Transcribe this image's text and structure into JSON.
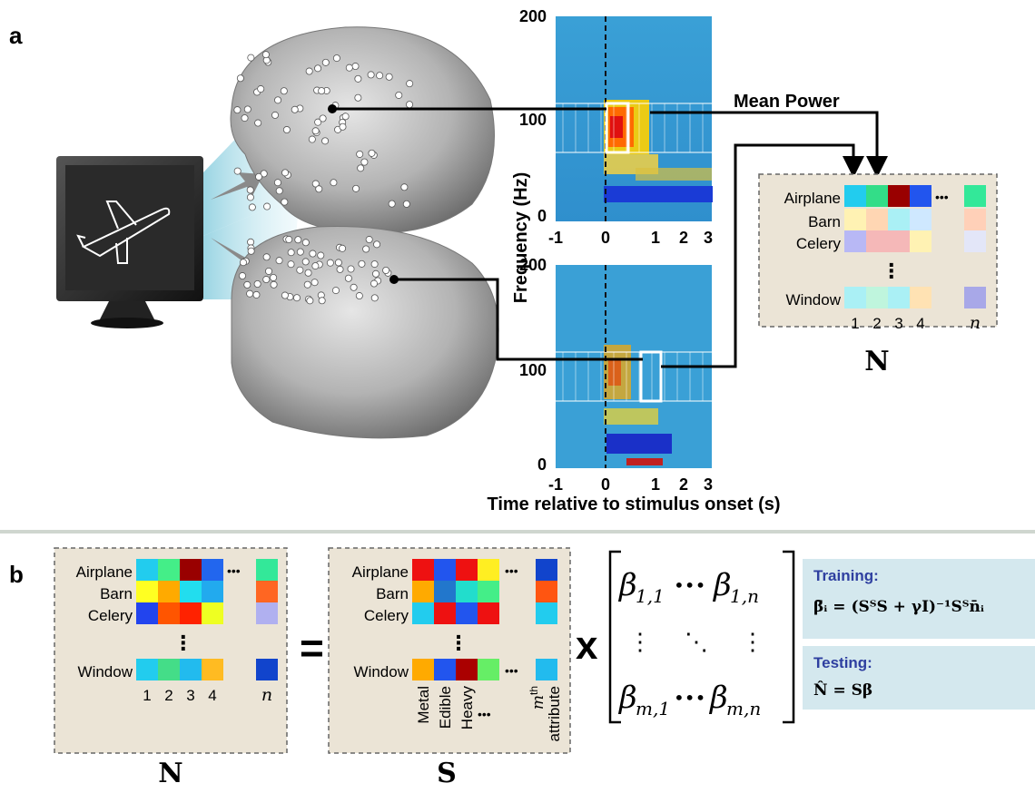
{
  "panel_a": {
    "label": "a",
    "mean_power_label": "Mean Power",
    "y_axis_label": "Frequency (Hz)",
    "x_axis_label": "Time relative to stimulus onset (s)",
    "spectrogram_top": {
      "y_ticks": [
        "200",
        "100",
        "0"
      ],
      "x_ticks": [
        "-1",
        "0",
        "1",
        "2",
        "3"
      ]
    },
    "spectrogram_bottom": {
      "y_ticks": [
        "200",
        "100",
        "0"
      ],
      "x_ticks": [
        "-1",
        "0",
        "1",
        "2",
        "3"
      ]
    },
    "matrix_N": {
      "rows": [
        "Airplane",
        "Barn",
        "Celery",
        "Window"
      ],
      "cols": [
        "1",
        "2",
        "3",
        "4"
      ],
      "last_col": "n",
      "name": "N",
      "colors": [
        [
          "#22ccee",
          "#33dd88",
          "#990000",
          "#2255ee",
          "#33e899"
        ],
        [
          "#fff2b3",
          "#ffd6b3",
          "#aaf0f5",
          "#cfe8ff",
          "#ffd0b8"
        ],
        [
          "#b8b8f5",
          "#f5b8b8",
          "#f5b8b8",
          "#fff2b3",
          "#e3e6f8"
        ],
        [
          "#aaf0f5",
          "#bff5dd",
          "#aaf0f5",
          "#ffe2b3",
          "#a8a8e8"
        ]
      ]
    }
  },
  "panel_b": {
    "label": "b",
    "matrix_N": {
      "rows": [
        "Airplane",
        "Barn",
        "Celery",
        "Window"
      ],
      "cols": [
        "1",
        "2",
        "3",
        "4"
      ],
      "last_col": "n",
      "name": "N",
      "colors": [
        [
          "#22ccee",
          "#44ee88",
          "#990000",
          "#2266ee",
          "#33e899"
        ],
        [
          "#ffff22",
          "#ffaa00",
          "#22ddee",
          "#22aaee",
          "#ff6622"
        ],
        [
          "#2244ee",
          "#ff5500",
          "#ff2200",
          "#eeff22",
          "#b0b0f0"
        ],
        [
          "#22ccee",
          "#44dd88",
          "#22bbee",
          "#ffbb22",
          "#1144cc"
        ]
      ]
    },
    "matrix_S": {
      "rows": [
        "Airplane",
        "Barn",
        "Celery",
        "Window"
      ],
      "cols": [
        "Metal",
        "Edible",
        "Heavy"
      ],
      "last_col_sup": "th",
      "last_col_base": "m",
      "last_col_suffix": "attribute",
      "name": "S",
      "colors": [
        [
          "#ee1111",
          "#2255ee",
          "#ee1111",
          "#ffee22",
          "#1144cc"
        ],
        [
          "#ffaa00",
          "#2277cc",
          "#22ddcc",
          "#44ee88",
          "#ff5511"
        ],
        [
          "#22ccee",
          "#ee1111",
          "#2255ee",
          "#ee1111",
          "#22ccee"
        ],
        [
          "#ffaa00",
          "#2255ee",
          "#aa0000",
          "#66ee66",
          "#22bbee"
        ]
      ]
    },
    "equals": "=",
    "times": "x",
    "dots": "•••",
    "training_label": "Training:",
    "testing_label": "Testing:"
  },
  "colors": {
    "matrix_box_bg": "#ebe4d6",
    "formula_box_bg": "#d4e8ee",
    "formula_label": "#2e3fa0",
    "divider": "#cfd6cf"
  }
}
